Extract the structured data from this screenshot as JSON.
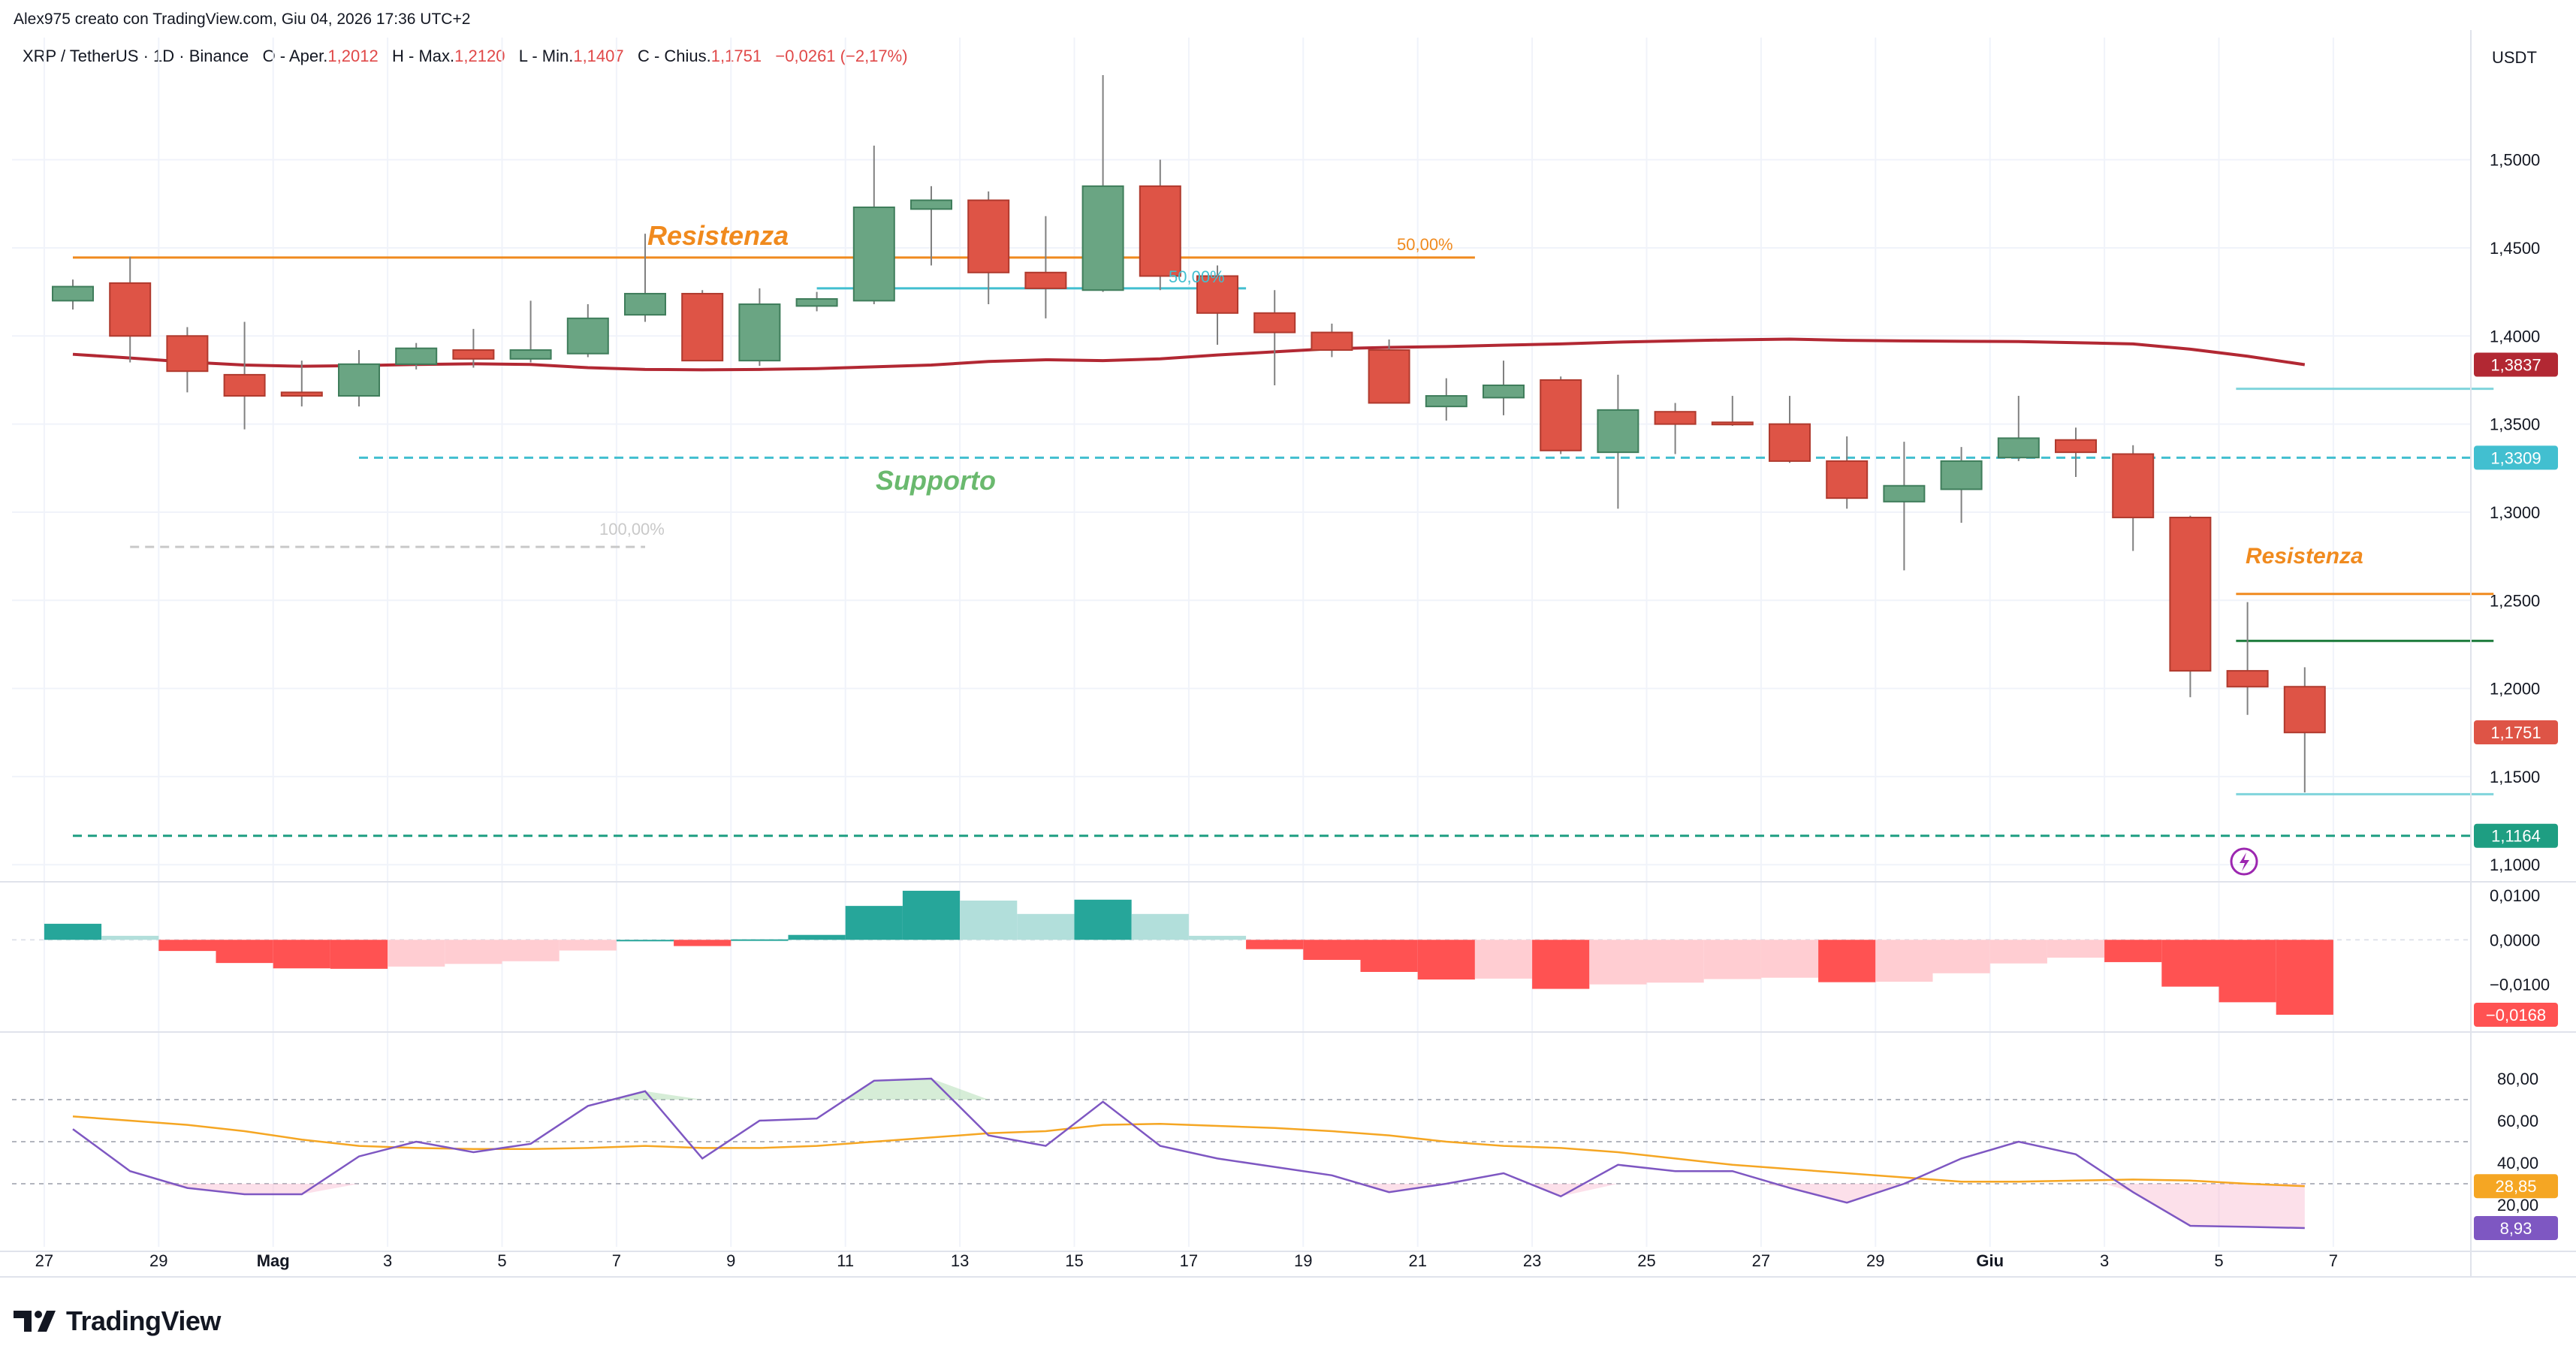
{
  "header": {
    "credit": "Alex975 creato con TradingView.com, Giu 04, 2026 17:36 UTC+2"
  },
  "legend": {
    "symbol": "XRP / TetherUS · 1D · Binance",
    "open_label": "O - Aper.",
    "open": "1,2012",
    "high_label": "H - Max.",
    "high": "1,2120",
    "low_label": "L - Min.",
    "low": "1,1407",
    "close_label": "C - Chius.",
    "close": "1,1751",
    "change": "−0,0261 (−2,17%)"
  },
  "colors": {
    "up": "#6aa583",
    "down": "#de5446",
    "ma": "#b22833",
    "orange": "#f08a1e",
    "support_green": "#6ab96e",
    "cyan": "#2ab7c4",
    "hist_up": "#26a69a",
    "hist_up_light": "#b2dfdb",
    "hist_down": "#ff5252",
    "hist_down_light": "#ffcdd2",
    "rsi": "#7e57c2",
    "rsi_ma": "#f5a623"
  },
  "price_axis": {
    "currency": "USDT",
    "ticks": [
      "1,5000",
      "1,4500",
      "1,4000",
      "1,3500",
      "1,3000",
      "1,2500",
      "1,2000",
      "1,1500",
      "1,1000"
    ],
    "tags": [
      {
        "text": "1,3837",
        "color": "#b22833"
      },
      {
        "text": "1,3309",
        "color": "#42bfd0"
      },
      {
        "text": "1,1751",
        "color": "#de5446"
      },
      {
        "text": "1,1164",
        "color": "#1e9e82"
      }
    ]
  },
  "macd_axis": {
    "ticks": [
      "0,0100",
      "0,0000",
      "−0,0100"
    ],
    "tag": {
      "text": "−0,0168",
      "color": "#ff5252"
    }
  },
  "rsi_axis": {
    "ticks": [
      "80,00",
      "60,00",
      "40,00",
      "20,00"
    ],
    "tags": [
      {
        "text": "28,85",
        "color": "#f5a623"
      },
      {
        "text": "8,93",
        "color": "#7e57c2"
      }
    ]
  },
  "time_axis": {
    "labels": [
      "27",
      "29",
      "Mag",
      "3",
      "5",
      "7",
      "9",
      "11",
      "13",
      "15",
      "17",
      "19",
      "21",
      "23",
      "25",
      "27",
      "29",
      "Giu",
      "3",
      "5",
      "7"
    ]
  },
  "annotations": {
    "resistance_1": "Resistenza",
    "support": "Supporto",
    "resistance_2": "Resistenza",
    "fib_50_a": "50,00%",
    "fib_50_b": "50,00%",
    "fib_100": "100,00%"
  },
  "chart_data": {
    "type": "candlestick",
    "price_range": [
      1.092,
      1.548
    ],
    "candles": [
      {
        "o": 1.42,
        "h": 1.432,
        "l": 1.415,
        "c": 1.428
      },
      {
        "o": 1.43,
        "h": 1.445,
        "l": 1.385,
        "c": 1.4
      },
      {
        "o": 1.4,
        "h": 1.405,
        "l": 1.368,
        "c": 1.38
      },
      {
        "o": 1.378,
        "h": 1.408,
        "l": 1.347,
        "c": 1.366
      },
      {
        "o": 1.368,
        "h": 1.386,
        "l": 1.36,
        "c": 1.366
      },
      {
        "o": 1.366,
        "h": 1.392,
        "l": 1.36,
        "c": 1.384
      },
      {
        "o": 1.384,
        "h": 1.396,
        "l": 1.381,
        "c": 1.393
      },
      {
        "o": 1.392,
        "h": 1.404,
        "l": 1.382,
        "c": 1.387
      },
      {
        "o": 1.387,
        "h": 1.42,
        "l": 1.385,
        "c": 1.392
      },
      {
        "o": 1.39,
        "h": 1.418,
        "l": 1.388,
        "c": 1.41
      },
      {
        "o": 1.412,
        "h": 1.458,
        "l": 1.408,
        "c": 1.424
      },
      {
        "o": 1.424,
        "h": 1.426,
        "l": 1.386,
        "c": 1.386
      },
      {
        "o": 1.386,
        "h": 1.427,
        "l": 1.383,
        "c": 1.418
      },
      {
        "o": 1.417,
        "h": 1.425,
        "l": 1.414,
        "c": 1.421
      },
      {
        "o": 1.42,
        "h": 1.508,
        "l": 1.418,
        "c": 1.473
      },
      {
        "o": 1.472,
        "h": 1.485,
        "l": 1.44,
        "c": 1.477
      },
      {
        "o": 1.477,
        "h": 1.482,
        "l": 1.418,
        "c": 1.436
      },
      {
        "o": 1.436,
        "h": 1.468,
        "l": 1.41,
        "c": 1.427
      },
      {
        "o": 1.426,
        "h": 1.548,
        "l": 1.425,
        "c": 1.485
      },
      {
        "o": 1.485,
        "h": 1.5,
        "l": 1.426,
        "c": 1.434
      },
      {
        "o": 1.434,
        "h": 1.44,
        "l": 1.395,
        "c": 1.413
      },
      {
        "o": 1.413,
        "h": 1.426,
        "l": 1.372,
        "c": 1.402
      },
      {
        "o": 1.402,
        "h": 1.407,
        "l": 1.388,
        "c": 1.392
      },
      {
        "o": 1.392,
        "h": 1.398,
        "l": 1.362,
        "c": 1.362
      },
      {
        "o": 1.36,
        "h": 1.376,
        "l": 1.352,
        "c": 1.366
      },
      {
        "o": 1.365,
        "h": 1.386,
        "l": 1.355,
        "c": 1.372
      },
      {
        "o": 1.375,
        "h": 1.377,
        "l": 1.333,
        "c": 1.335
      },
      {
        "o": 1.334,
        "h": 1.378,
        "l": 1.302,
        "c": 1.358
      },
      {
        "o": 1.357,
        "h": 1.362,
        "l": 1.333,
        "c": 1.35
      },
      {
        "o": 1.351,
        "h": 1.366,
        "l": 1.349,
        "c": 1.35
      },
      {
        "o": 1.35,
        "h": 1.366,
        "l": 1.328,
        "c": 1.329
      },
      {
        "o": 1.329,
        "h": 1.343,
        "l": 1.302,
        "c": 1.308
      },
      {
        "o": 1.306,
        "h": 1.34,
        "l": 1.267,
        "c": 1.315
      },
      {
        "o": 1.313,
        "h": 1.337,
        "l": 1.294,
        "c": 1.329
      },
      {
        "o": 1.331,
        "h": 1.366,
        "l": 1.329,
        "c": 1.342
      },
      {
        "o": 1.341,
        "h": 1.348,
        "l": 1.32,
        "c": 1.334
      },
      {
        "o": 1.333,
        "h": 1.338,
        "l": 1.278,
        "c": 1.297
      },
      {
        "o": 1.297,
        "h": 1.298,
        "l": 1.195,
        "c": 1.21
      },
      {
        "o": 1.21,
        "h": 1.249,
        "l": 1.185,
        "c": 1.201
      },
      {
        "o": 1.201,
        "h": 1.212,
        "l": 1.141,
        "c": 1.175
      }
    ],
    "sma": [
      1.3896,
      1.3875,
      1.3852,
      1.3835,
      1.3828,
      1.3832,
      1.3838,
      1.3842,
      1.3838,
      1.382,
      1.381,
      1.3808,
      1.381,
      1.3815,
      1.3825,
      1.3835,
      1.3855,
      1.3865,
      1.386,
      1.387,
      1.3892,
      1.391,
      1.3928,
      1.3935,
      1.394,
      1.3948,
      1.3955,
      1.3965,
      1.3972,
      1.3978,
      1.3982,
      1.3975,
      1.3972,
      1.397,
      1.3968,
      1.3962,
      1.3955,
      1.3925,
      1.3885,
      1.3837
    ],
    "hlines": [
      {
        "name": "Resistenza",
        "value": 1.4445,
        "from": 0,
        "to": 24.5,
        "color": "#f08a1e",
        "style": "solid"
      },
      {
        "name": "Supporto",
        "value": 1.3309,
        "from": 5,
        "to": 42.3,
        "color": "#42bfd0",
        "style": "dashed"
      },
      {
        "name": "fib-100",
        "value": 1.2803,
        "from": 1,
        "to": 10,
        "color": "#c9c9c9",
        "style": "dashed"
      },
      {
        "name": "fib-50",
        "value": 1.427,
        "from": 13,
        "to": 20.5,
        "color": "#42bfd0",
        "style": "solid"
      },
      {
        "name": "level-1164",
        "value": 1.1164,
        "from": 0,
        "to": 43.2,
        "color": "#1e9e82",
        "style": "dashed"
      },
      {
        "name": "Resistenza",
        "value": 1.2536,
        "from": 37.8,
        "to": 42.3,
        "color": "#f08a1e",
        "style": "solid"
      },
      {
        "name": "level-1370",
        "value": 1.37,
        "from": 37.8,
        "to": 42.3,
        "color": "#80d4dc",
        "style": "solid"
      },
      {
        "name": "level-1227",
        "value": 1.227,
        "from": 37.8,
        "to": 42.3,
        "color": "#1b7a3a",
        "style": "solid"
      },
      {
        "name": "level-1140",
        "value": 1.14,
        "from": 37.8,
        "to": 42.3,
        "color": "#80d4dc",
        "style": "solid"
      }
    ],
    "macd_range": [
      -0.02,
      0.012
    ],
    "macd_hist": [
      0.0036,
      0.0009,
      -0.0025,
      -0.0052,
      -0.0064,
      -0.0065,
      -0.006,
      -0.0054,
      -0.0048,
      -0.0024,
      0.0,
      -0.0014,
      0.0001,
      0.0011,
      0.0076,
      0.011,
      0.0088,
      0.0058,
      0.009,
      0.0058,
      0.0009,
      -0.0021,
      -0.0045,
      -0.0072,
      -0.0089,
      -0.0087,
      -0.011,
      -0.01,
      -0.0096,
      -0.0088,
      -0.0085,
      -0.0095,
      -0.0094,
      -0.0075,
      -0.0053,
      -0.004,
      -0.005,
      -0.0105,
      -0.014,
      -0.0168
    ],
    "rsi_range": [
      0,
      100
    ],
    "rsi_bands": [
      70,
      50,
      30
    ],
    "rsi": [
      56.0,
      36.0,
      28.0,
      25.0,
      25.0,
      43.0,
      50.0,
      45.0,
      49.0,
      67.0,
      74.0,
      42.0,
      60.0,
      61.0,
      79.0,
      80.0,
      53.0,
      48.0,
      69.0,
      48.0,
      42.0,
      38.0,
      34.0,
      26.0,
      30.0,
      35.0,
      24.0,
      39.0,
      36.0,
      36.0,
      28.0,
      21.0,
      30.0,
      42.0,
      50.0,
      44.0,
      26.0,
      10.0,
      9.5,
      8.93
    ],
    "rsi_ma": [
      62.0,
      60.0,
      58.0,
      55.0,
      51.0,
      48.0,
      47.0,
      46.5,
      46.5,
      47.0,
      48.0,
      47.0,
      47.0,
      48.0,
      50.0,
      52.0,
      54.0,
      55.0,
      58.0,
      58.5,
      57.5,
      56.5,
      55.0,
      53.0,
      50.0,
      48.0,
      47.0,
      45.0,
      42.0,
      39.0,
      37.0,
      35.0,
      33.0,
      31.0,
      31.0,
      31.5,
      32.0,
      31.5,
      30.0,
      28.85
    ]
  }
}
